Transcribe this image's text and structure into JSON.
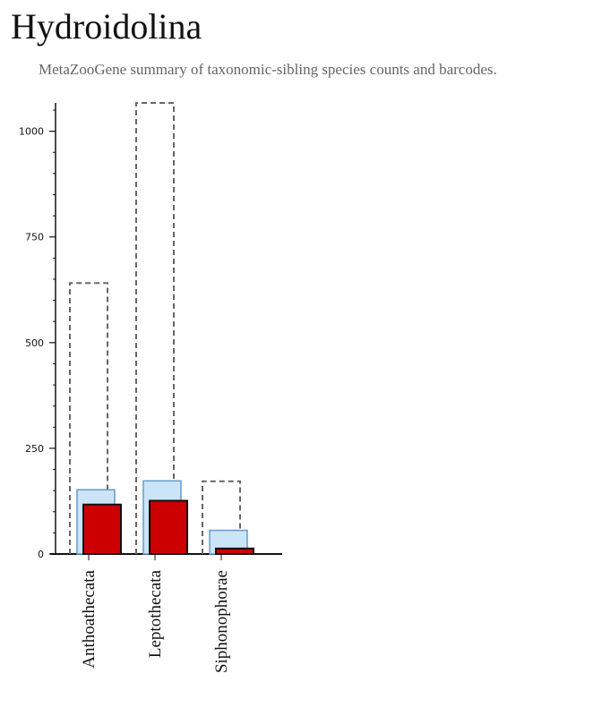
{
  "header": {
    "title": "Hydroidolina",
    "subtitle": "MetaZooGene summary of taxonomic-sibling species counts and barcodes."
  },
  "chart_data": {
    "type": "bar",
    "categories": [
      "Anthoathecata",
      "Leptothecata",
      "Siphonophorae"
    ],
    "series": [
      {
        "style": "outline",
        "color": "#666666",
        "values": [
          641,
          1067,
          172
        ]
      },
      {
        "style": "fill",
        "color": "#cce4f7",
        "stroke": "#6699cc",
        "values": [
          152,
          173,
          56
        ]
      },
      {
        "style": "fill",
        "color": "#cc0000",
        "stroke": "#111111",
        "values": [
          117,
          126,
          13
        ]
      }
    ],
    "yticks": [
      0,
      250,
      500,
      750,
      1000
    ],
    "ylim": [
      0,
      1067
    ],
    "grid": false
  }
}
